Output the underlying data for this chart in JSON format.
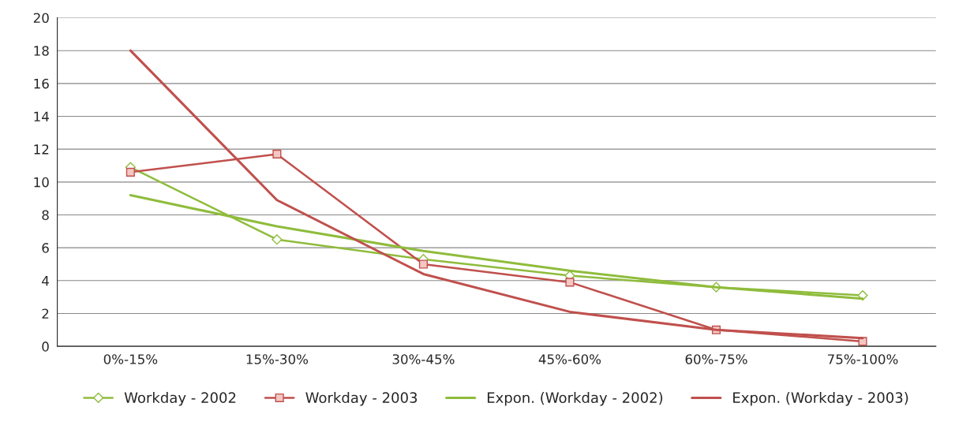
{
  "chart_data": {
    "type": "line",
    "categories": [
      "0%-15%",
      "15%-30%",
      "30%-45%",
      "45%-60%",
      "60%-75%",
      "75%-100%"
    ],
    "series": [
      {
        "name": "Workday - 2002",
        "color": "#8fbc3c",
        "marker": "diamond",
        "values": [
          10.9,
          6.5,
          5.3,
          4.3,
          3.6,
          3.1
        ]
      },
      {
        "name": "Workday - 2003",
        "color": "#c0504d",
        "marker": "square",
        "values": [
          10.6,
          11.7,
          5.0,
          3.9,
          1.0,
          0.3
        ]
      },
      {
        "name": "Expon. (Workday - 2002)",
        "color": "#8fbc3c",
        "marker": "none",
        "values": [
          9.2,
          7.3,
          5.8,
          4.6,
          3.6,
          2.9
        ]
      },
      {
        "name": "Expon. (Workday - 2003)",
        "color": "#c0504d",
        "marker": "none",
        "values": [
          18.0,
          8.9,
          4.4,
          2.1,
          1.0,
          0.5
        ]
      }
    ],
    "ylim": [
      0,
      20
    ],
    "yticks": [
      0,
      2,
      4,
      6,
      8,
      10,
      12,
      14,
      16,
      18,
      20
    ],
    "grid": "y",
    "legend": "bottom",
    "line_style": "solid"
  }
}
